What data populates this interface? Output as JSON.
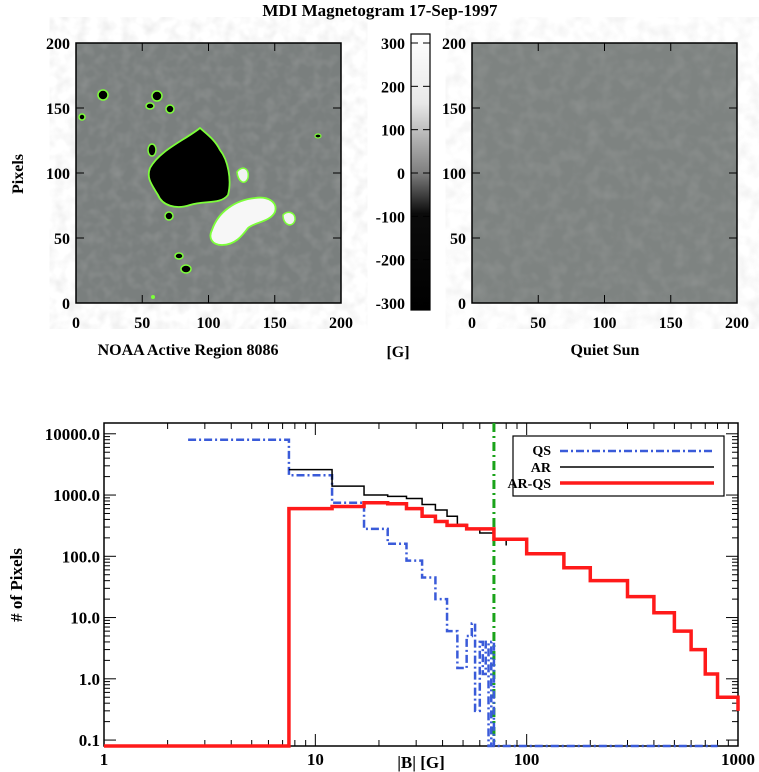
{
  "title": "MDI Magnetogram 17-Sep-1997",
  "colors": {
    "qs": "#3a5bd9",
    "ar": "#000000",
    "arqs": "#ff1a1a",
    "threshold": "#1aa31a",
    "contour": "#7dff3a"
  },
  "chart_data": [
    {
      "type": "heatmap",
      "name": "active-region-map",
      "xlabel": "NOAA Active Region 8086",
      "ylabel": "Pixels",
      "xlim": [
        0,
        200
      ],
      "ylim": [
        0,
        200
      ],
      "xticks": [
        "0",
        "50",
        "100",
        "150",
        "200"
      ],
      "yticks": [
        "0",
        "50",
        "100",
        "150",
        "200"
      ]
    },
    {
      "type": "heatmap",
      "name": "colorbar",
      "unit_label": "[G]",
      "range": [
        -300,
        300
      ],
      "ticks": [
        "300",
        "200",
        "100",
        "0",
        "-100",
        "-200",
        "-300"
      ]
    },
    {
      "type": "heatmap",
      "name": "quiet-sun-map",
      "xlabel": "Quiet Sun",
      "xlim": [
        0,
        200
      ],
      "ylim": [
        0,
        200
      ],
      "xticks": [
        "0",
        "50",
        "100",
        "150",
        "200"
      ],
      "yticks": [
        "0",
        "50",
        "100",
        "150",
        "200"
      ]
    },
    {
      "type": "line",
      "name": "histogram",
      "xlabel": "|B| [G]",
      "ylabel": "# of Pixels",
      "xscale": "log",
      "yscale": "log",
      "xlim": [
        1,
        1000
      ],
      "ylim": [
        0.08,
        15000
      ],
      "xticks": [
        "1",
        "10",
        "100",
        "1000"
      ],
      "yticks": [
        "10000.0",
        "1000.0",
        "100.0",
        "10.0",
        "1.0",
        "0.1"
      ],
      "threshold_x": 70,
      "legend_position": "top-right",
      "series": [
        {
          "name": "QS",
          "style": "dash-dot",
          "color": "#3a5bd9",
          "x": [
            2.5,
            5,
            7.5,
            12,
            17,
            22,
            27,
            32,
            37,
            42,
            47,
            52,
            55,
            57,
            60,
            62,
            64,
            66,
            68,
            70,
            800
          ],
          "y": [
            8000,
            8000,
            2100,
            750,
            280,
            160,
            85,
            45,
            20,
            6,
            1.5,
            5,
            8,
            0.3,
            4,
            1.2,
            4,
            0.08,
            4,
            0.08,
            0.08
          ]
        },
        {
          "name": "AR",
          "style": "solid",
          "color": "#000000",
          "x": [
            7.5,
            12,
            17,
            22,
            27,
            32,
            37,
            42,
            47,
            52,
            60,
            70,
            80
          ],
          "y": [
            2600,
            1400,
            1000,
            950,
            880,
            700,
            570,
            450,
            330,
            280,
            240,
            190,
            150
          ]
        },
        {
          "name": "AR-QS",
          "style": "solid-thick",
          "color": "#ff1a1a",
          "x": [
            1,
            7.5,
            7.5,
            12,
            17,
            22,
            27,
            32,
            37,
            42,
            52,
            70,
            100,
            150,
            200,
            300,
            400,
            500,
            600,
            700,
            800,
            1000
          ],
          "y": [
            0.08,
            0.08,
            600,
            650,
            750,
            720,
            600,
            450,
            370,
            320,
            280,
            190,
            110,
            65,
            40,
            22,
            12,
            6,
            3,
            1.2,
            0.5,
            0.3
          ]
        }
      ]
    }
  ]
}
